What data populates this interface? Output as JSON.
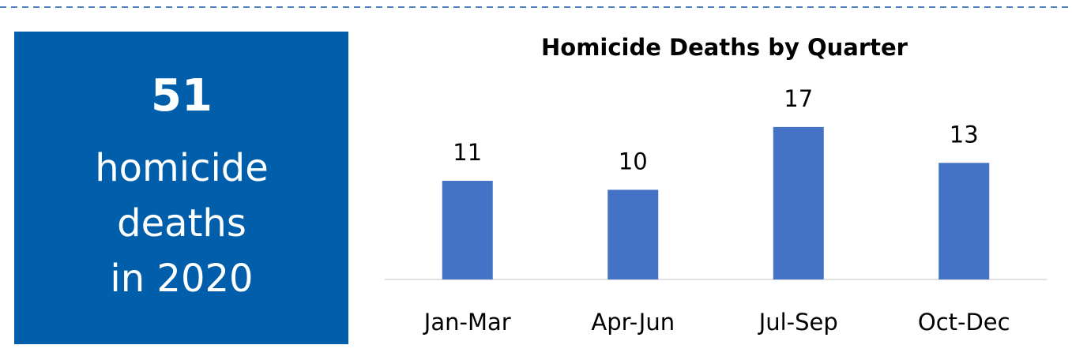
{
  "kpi": {
    "value": 51,
    "lines": [
      "homicide",
      "deaths",
      "in 2020"
    ]
  },
  "chart_data": {
    "type": "bar",
    "title": "Homicide Deaths by Quarter",
    "categories": [
      "Jan-Mar",
      "Apr-Jun",
      "Jul-Sep",
      "Oct-Dec"
    ],
    "values": [
      11,
      10,
      17,
      13
    ],
    "color": "#4472c4"
  }
}
